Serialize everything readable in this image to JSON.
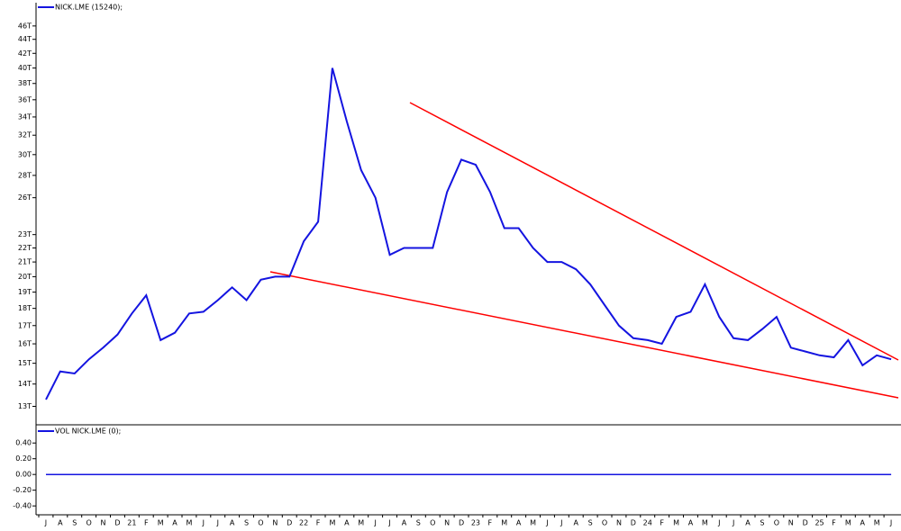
{
  "chart_data": {
    "type": "line",
    "categories": [
      "J",
      "A",
      "S",
      "O",
      "N",
      "D",
      "21",
      "F",
      "M",
      "A",
      "M",
      "J",
      "J",
      "A",
      "S",
      "O",
      "N",
      "D",
      "22",
      "F",
      "M",
      "A",
      "M",
      "J",
      "J",
      "A",
      "S",
      "O",
      "N",
      "D",
      "23",
      "F",
      "M",
      "A",
      "M",
      "J",
      "J",
      "A",
      "S",
      "O",
      "N",
      "D",
      "24",
      "F",
      "M",
      "A",
      "M",
      "J",
      "J",
      "A",
      "S",
      "O",
      "N",
      "D",
      "25",
      "F",
      "M",
      "A",
      "M",
      "J"
    ],
    "series": [
      {
        "name": "NICK.LME (15240);",
        "color": "#1414e0",
        "values": [
          13300,
          14600,
          14500,
          15200,
          15800,
          16500,
          17700,
          18800,
          16200,
          16600,
          17700,
          17800,
          18500,
          19300,
          18500,
          19800,
          20000,
          20000,
          22500,
          24000,
          40000,
          33500,
          28500,
          26000,
          21500,
          22000,
          22000,
          22000,
          26500,
          29500,
          29000,
          26500,
          23500,
          23500,
          22000,
          21000,
          21000,
          20500,
          19500,
          18200,
          17000,
          16300,
          16200,
          16000,
          17500,
          17800,
          19500,
          17500,
          16300,
          16200,
          16800,
          17500,
          15800,
          15600,
          15400,
          15300,
          16200,
          14900,
          15400,
          15200
        ]
      },
      {
        "name": "VOL NICK.LME (0);",
        "color": "#1414e0",
        "axis": "y2",
        "values": [
          0,
          0,
          0,
          0,
          0,
          0,
          0,
          0,
          0,
          0,
          0,
          0,
          0,
          0,
          0,
          0,
          0,
          0,
          0,
          0,
          0,
          0,
          0,
          0,
          0,
          0,
          0,
          0,
          0,
          0,
          0,
          0,
          0,
          0,
          0,
          0,
          0,
          0,
          0,
          0,
          0,
          0,
          0,
          0,
          0,
          0,
          0,
          0,
          0,
          0,
          0,
          0,
          0,
          0,
          0,
          0,
          0,
          0,
          0,
          0
        ]
      }
    ],
    "log_y": true,
    "ylim": [
      12300,
      49400
    ],
    "yticks": [
      {
        "value": 13000,
        "label": "13T"
      },
      {
        "value": 14000,
        "label": "14T"
      },
      {
        "value": 15000,
        "label": "15T"
      },
      {
        "value": 16000,
        "label": "16T"
      },
      {
        "value": 17000,
        "label": "17T"
      },
      {
        "value": 18000,
        "label": "18T"
      },
      {
        "value": 19000,
        "label": "19T"
      },
      {
        "value": 20000,
        "label": "20T"
      },
      {
        "value": 21000,
        "label": "21T"
      },
      {
        "value": 22000,
        "label": "22T"
      },
      {
        "value": 23000,
        "label": "23T"
      },
      {
        "value": 26000,
        "label": "26T"
      },
      {
        "value": 28000,
        "label": "28T"
      },
      {
        "value": 30000,
        "label": "30T"
      },
      {
        "value": 32000,
        "label": "32T"
      },
      {
        "value": 34000,
        "label": "34T"
      },
      {
        "value": 36000,
        "label": "36T"
      },
      {
        "value": 38000,
        "label": "38T"
      },
      {
        "value": 40000,
        "label": "40T"
      },
      {
        "value": 42000,
        "label": "42T"
      },
      {
        "value": 44000,
        "label": "44T"
      },
      {
        "value": 46000,
        "label": "46T"
      }
    ],
    "y2lim": [
      -0.49,
      0.62
    ],
    "y2ticks": [
      {
        "value": 0.4,
        "label": "0.40"
      },
      {
        "value": 0.2,
        "label": "0.20"
      },
      {
        "value": 0,
        "label": "0.00"
      },
      {
        "value": -0.2,
        "label": "-0.20"
      },
      {
        "value": -0.4,
        "label": "-0.40"
      }
    ]
  }
}
